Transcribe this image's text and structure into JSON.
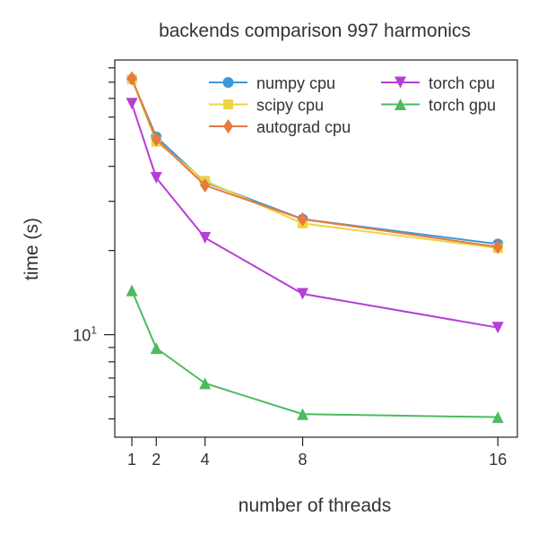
{
  "chart_data": {
    "type": "line",
    "title": "backends comparison 997 harmonics",
    "xlabel": "number of threads",
    "ylabel": "time (s)",
    "xscale": "linear",
    "yscale": "log",
    "xlim": [
      0.3,
      16.8
    ],
    "ylim": [
      4.3,
      96
    ],
    "xticks": [
      1,
      2,
      4,
      8,
      16
    ],
    "xtick_labels": [
      "1",
      "2",
      "4",
      "8",
      "16"
    ],
    "ytick_label_base": "10",
    "ytick_label_exp": "1",
    "grid": false,
    "legend_placement": "top-right",
    "x": [
      1,
      2,
      4,
      8,
      16
    ],
    "series": [
      {
        "name": "numpy cpu",
        "color": "#3a9ad9",
        "marker": "circle",
        "values": [
          82,
          51,
          35.1,
          25.9,
          21.1
        ]
      },
      {
        "name": "scipy cpu",
        "color": "#ecd444",
        "marker": "square",
        "values": [
          82,
          49,
          35.5,
          25.0,
          20.4
        ]
      },
      {
        "name": "autograd cpu",
        "color": "#e8793f",
        "marker": "diamond",
        "values": [
          82.5,
          50,
          34.2,
          25.9,
          20.6
        ]
      },
      {
        "name": "torch cpu",
        "color": "#b43fd4",
        "marker": "triangle-down",
        "values": [
          67,
          36.4,
          22.2,
          14.0,
          10.6
        ]
      },
      {
        "name": "torch gpu",
        "color": "#4cbb5e",
        "marker": "triangle-up",
        "values": [
          14.4,
          8.95,
          6.7,
          5.2,
          5.07
        ]
      }
    ]
  }
}
